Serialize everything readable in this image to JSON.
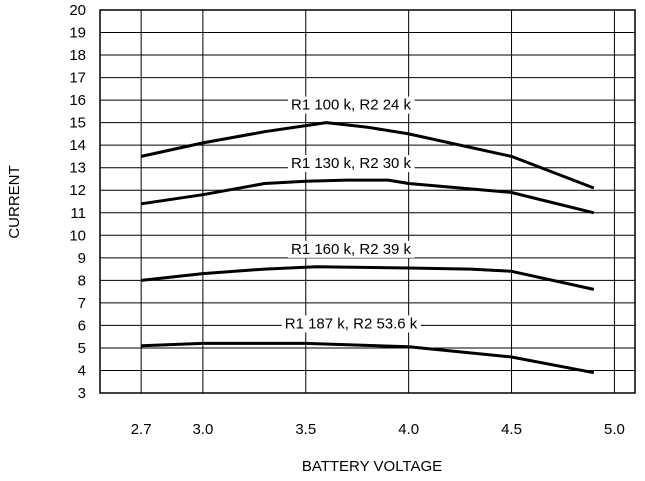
{
  "chart_data": {
    "type": "line",
    "title": "",
    "xlabel": "BATTERY VOLTAGE",
    "ylabel": "CURRENT",
    "xlim": [
      2.5,
      5.1
    ],
    "ylim": [
      3,
      20
    ],
    "x_ticks": [
      "2.7",
      "3.0",
      "3.5",
      "4.0",
      "4.5",
      "5.0"
    ],
    "y_ticks": [
      "3",
      "4",
      "5",
      "6",
      "7",
      "8",
      "9",
      "10",
      "11",
      "12",
      "13",
      "14",
      "15",
      "16",
      "17",
      "18",
      "19",
      "20"
    ],
    "grid": true,
    "legend": "none",
    "series": [
      {
        "name": "R1 100 k, R2 24 k",
        "x": [
          2.7,
          3.0,
          3.3,
          3.6,
          3.8,
          4.0,
          4.5,
          4.9
        ],
        "y": [
          13.5,
          14.1,
          14.6,
          15.0,
          14.8,
          14.5,
          13.5,
          12.1
        ]
      },
      {
        "name": "R1 130 k, R2 30 k",
        "x": [
          2.7,
          3.0,
          3.3,
          3.5,
          3.7,
          3.9,
          4.0,
          4.5,
          4.9
        ],
        "y": [
          11.4,
          11.8,
          12.3,
          12.4,
          12.45,
          12.45,
          12.3,
          11.9,
          11.0
        ]
      },
      {
        "name": "R1 160 k, R2 39 k",
        "x": [
          2.7,
          3.0,
          3.3,
          3.55,
          4.0,
          4.3,
          4.5,
          4.9
        ],
        "y": [
          8.0,
          8.3,
          8.5,
          8.6,
          8.55,
          8.5,
          8.4,
          7.6
        ]
      },
      {
        "name": "R1 187 k, R2 53.6 k",
        "x": [
          2.7,
          3.0,
          3.5,
          4.0,
          4.5,
          4.9
        ],
        "y": [
          5.1,
          5.2,
          5.2,
          5.05,
          4.6,
          3.9
        ]
      }
    ]
  }
}
